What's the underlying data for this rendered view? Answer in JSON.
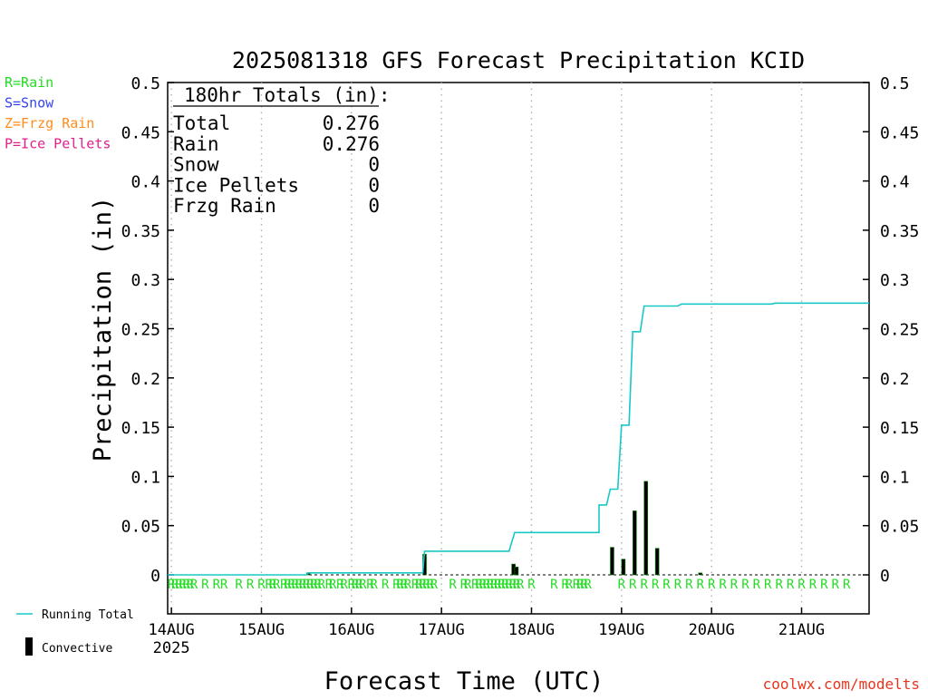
{
  "chart_data": {
    "type": "bar",
    "title": "2025081318 GFS Forecast Precipitation KCID",
    "xlabel": "Forecast Time (UTC)",
    "ylabel": "Precipitation (in)",
    "ylim": [
      0,
      0.5
    ],
    "yticks": [
      "0",
      "0.05",
      "0.1",
      "0.15",
      "0.2",
      "0.25",
      "0.3",
      "0.35",
      "0.4",
      "0.45",
      "0.5"
    ],
    "xlim_hours": [
      -1,
      186
    ],
    "xticks": [
      {
        "label": "14AUG",
        "hour": 0
      },
      {
        "label": "15AUG",
        "hour": 24
      },
      {
        "label": "16AUG",
        "hour": 48
      },
      {
        "label": "17AUG",
        "hour": 72
      },
      {
        "label": "18AUG",
        "hour": 96
      },
      {
        "label": "19AUG",
        "hour": 120
      },
      {
        "label": "20AUG",
        "hour": 144
      },
      {
        "label": "21AUG",
        "hour": 168
      }
    ],
    "year_label": "2025",
    "grid": "vertical dotted at 00Z",
    "ptype_legend": [
      {
        "text": "R=Rain",
        "color": "#22dd22"
      },
      {
        "text": "S=Snow",
        "color": "#3344ee"
      },
      {
        "text": "Z=Frzg Rain",
        "color": "#ff8c1a"
      },
      {
        "text": "P=Ice Pellets",
        "color": "#e0208c"
      }
    ],
    "totals": {
      "header": "180hr Totals (in):",
      "rows": [
        {
          "label": "Total",
          "value": "0.276"
        },
        {
          "label": "Rain",
          "value": "0.276"
        },
        {
          "label": "Snow",
          "value": "0"
        },
        {
          "label": "Ice Pellets",
          "value": "0"
        },
        {
          "label": "Frzg Rain",
          "value": "0"
        }
      ]
    },
    "series": [
      {
        "name": "Running Total",
        "color": "#18c8c8",
        "points": [
          [
            -1,
            0
          ],
          [
            36,
            0
          ],
          [
            36.5,
            0.002
          ],
          [
            67,
            0.002
          ],
          [
            67.5,
            0.024
          ],
          [
            90,
            0.024
          ],
          [
            91.5,
            0.043
          ],
          [
            114,
            0.043
          ],
          [
            114,
            0.071
          ],
          [
            116,
            0.071
          ],
          [
            117,
            0.087
          ],
          [
            119,
            0.087
          ],
          [
            120,
            0.152
          ],
          [
            122,
            0.152
          ],
          [
            123,
            0.247
          ],
          [
            125,
            0.247
          ],
          [
            126,
            0.273
          ],
          [
            135,
            0.273
          ],
          [
            136,
            0.275
          ],
          [
            160,
            0.275
          ],
          [
            161,
            0.276
          ],
          [
            186,
            0.276
          ]
        ]
      },
      {
        "name": "Convective",
        "color": "#000000",
        "bars": [
          {
            "hour": 36.5,
            "value": 0.002
          },
          {
            "hour": 67.5,
            "value": 0.021
          },
          {
            "hour": 91.2,
            "value": 0.011
          },
          {
            "hour": 92,
            "value": 0.008
          },
          {
            "hour": 117.5,
            "value": 0.028
          },
          {
            "hour": 120.5,
            "value": 0.016
          },
          {
            "hour": 123.5,
            "value": 0.065
          },
          {
            "hour": 126.5,
            "value": 0.095
          },
          {
            "hour": 129.5,
            "value": 0.027
          },
          {
            "hour": 141,
            "value": 0.002
          }
        ]
      }
    ],
    "ptype_marks": {
      "letter": "R",
      "color": "#22dd22",
      "hours": [
        0,
        1,
        2,
        3,
        4,
        5,
        6,
        9,
        12,
        14,
        18,
        21,
        24,
        26,
        27,
        28,
        30,
        31,
        32,
        33,
        34,
        35,
        36,
        37,
        38,
        39,
        40,
        42,
        43,
        45,
        46,
        48,
        49,
        50,
        51,
        53,
        54,
        57,
        60,
        61,
        62,
        63,
        65,
        66,
        67,
        68,
        69,
        70,
        75,
        78,
        79,
        81,
        82,
        83,
        84,
        85,
        86,
        87,
        88,
        89,
        90,
        91,
        92,
        93,
        96,
        102,
        105,
        106,
        108,
        109,
        110,
        111,
        120,
        123,
        126,
        129,
        132,
        135,
        138,
        141,
        144,
        147,
        150,
        153,
        156,
        159,
        162,
        165,
        168,
        171,
        174,
        177,
        180
      ]
    },
    "legend": [
      {
        "label": "Running Total",
        "kind": "line",
        "color": "#18c8c8"
      },
      {
        "label": "Convective",
        "kind": "bar",
        "color": "#000000"
      }
    ],
    "credit": "coolwx.com/modelts",
    "credit_color": "#e8341c"
  }
}
